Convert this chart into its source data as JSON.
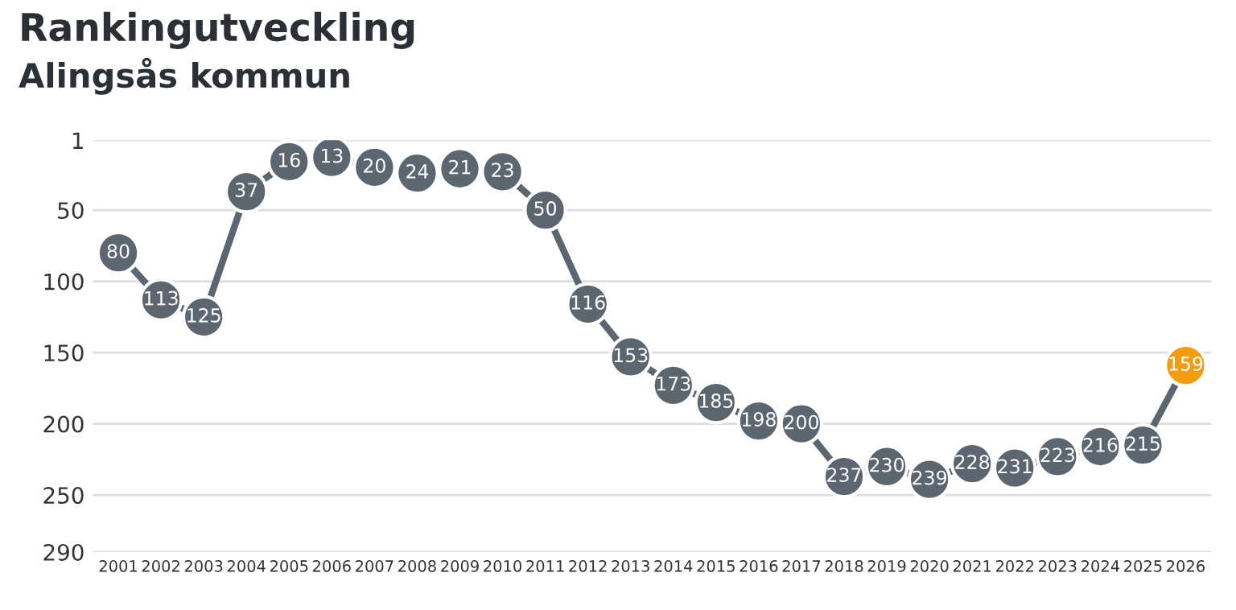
{
  "chart_data": {
    "type": "line",
    "title": "Rankingutveckling",
    "subtitle": "Alingsås kommun",
    "categories": [
      "2001",
      "2002",
      "2003",
      "2004",
      "2005",
      "2006",
      "2007",
      "2008",
      "2009",
      "2010",
      "2011",
      "2012",
      "2013",
      "2014",
      "2015",
      "2016",
      "2017",
      "2018",
      "2019",
      "2020",
      "2021",
      "2022",
      "2023",
      "2024",
      "2025",
      "2026"
    ],
    "series": [
      {
        "color": "#5b6670",
        "colors": [
          "#5b6670",
          "#5b6670",
          "#5b6670",
          "#5b6670",
          "#5b6670",
          "#5b6670",
          "#5b6670",
          "#5b6670",
          "#5b6670",
          "#5b6670",
          "#5b6670",
          "#5b6670",
          "#5b6670",
          "#5b6670",
          "#5b6670",
          "#5b6670",
          "#5b6670",
          "#5b6670",
          "#5b6670",
          "#5b6670",
          "#5b6670",
          "#5b6670",
          "#5b6670",
          "#5b6670",
          "#5b6670",
          "#f39c12"
        ],
        "values": [
          80,
          113,
          125,
          37,
          16,
          13,
          20,
          24,
          21,
          23,
          50,
          116,
          153,
          173,
          185,
          198,
          200,
          237,
          230,
          239,
          228,
          231,
          223,
          216,
          215,
          159
        ]
      }
    ],
    "ylim": [
      290,
      1
    ],
    "yticks": [
      1,
      50,
      100,
      150,
      200,
      250,
      290
    ],
    "grid": "y",
    "marker": "circle",
    "line_style": "solid",
    "data_labels": true
  }
}
